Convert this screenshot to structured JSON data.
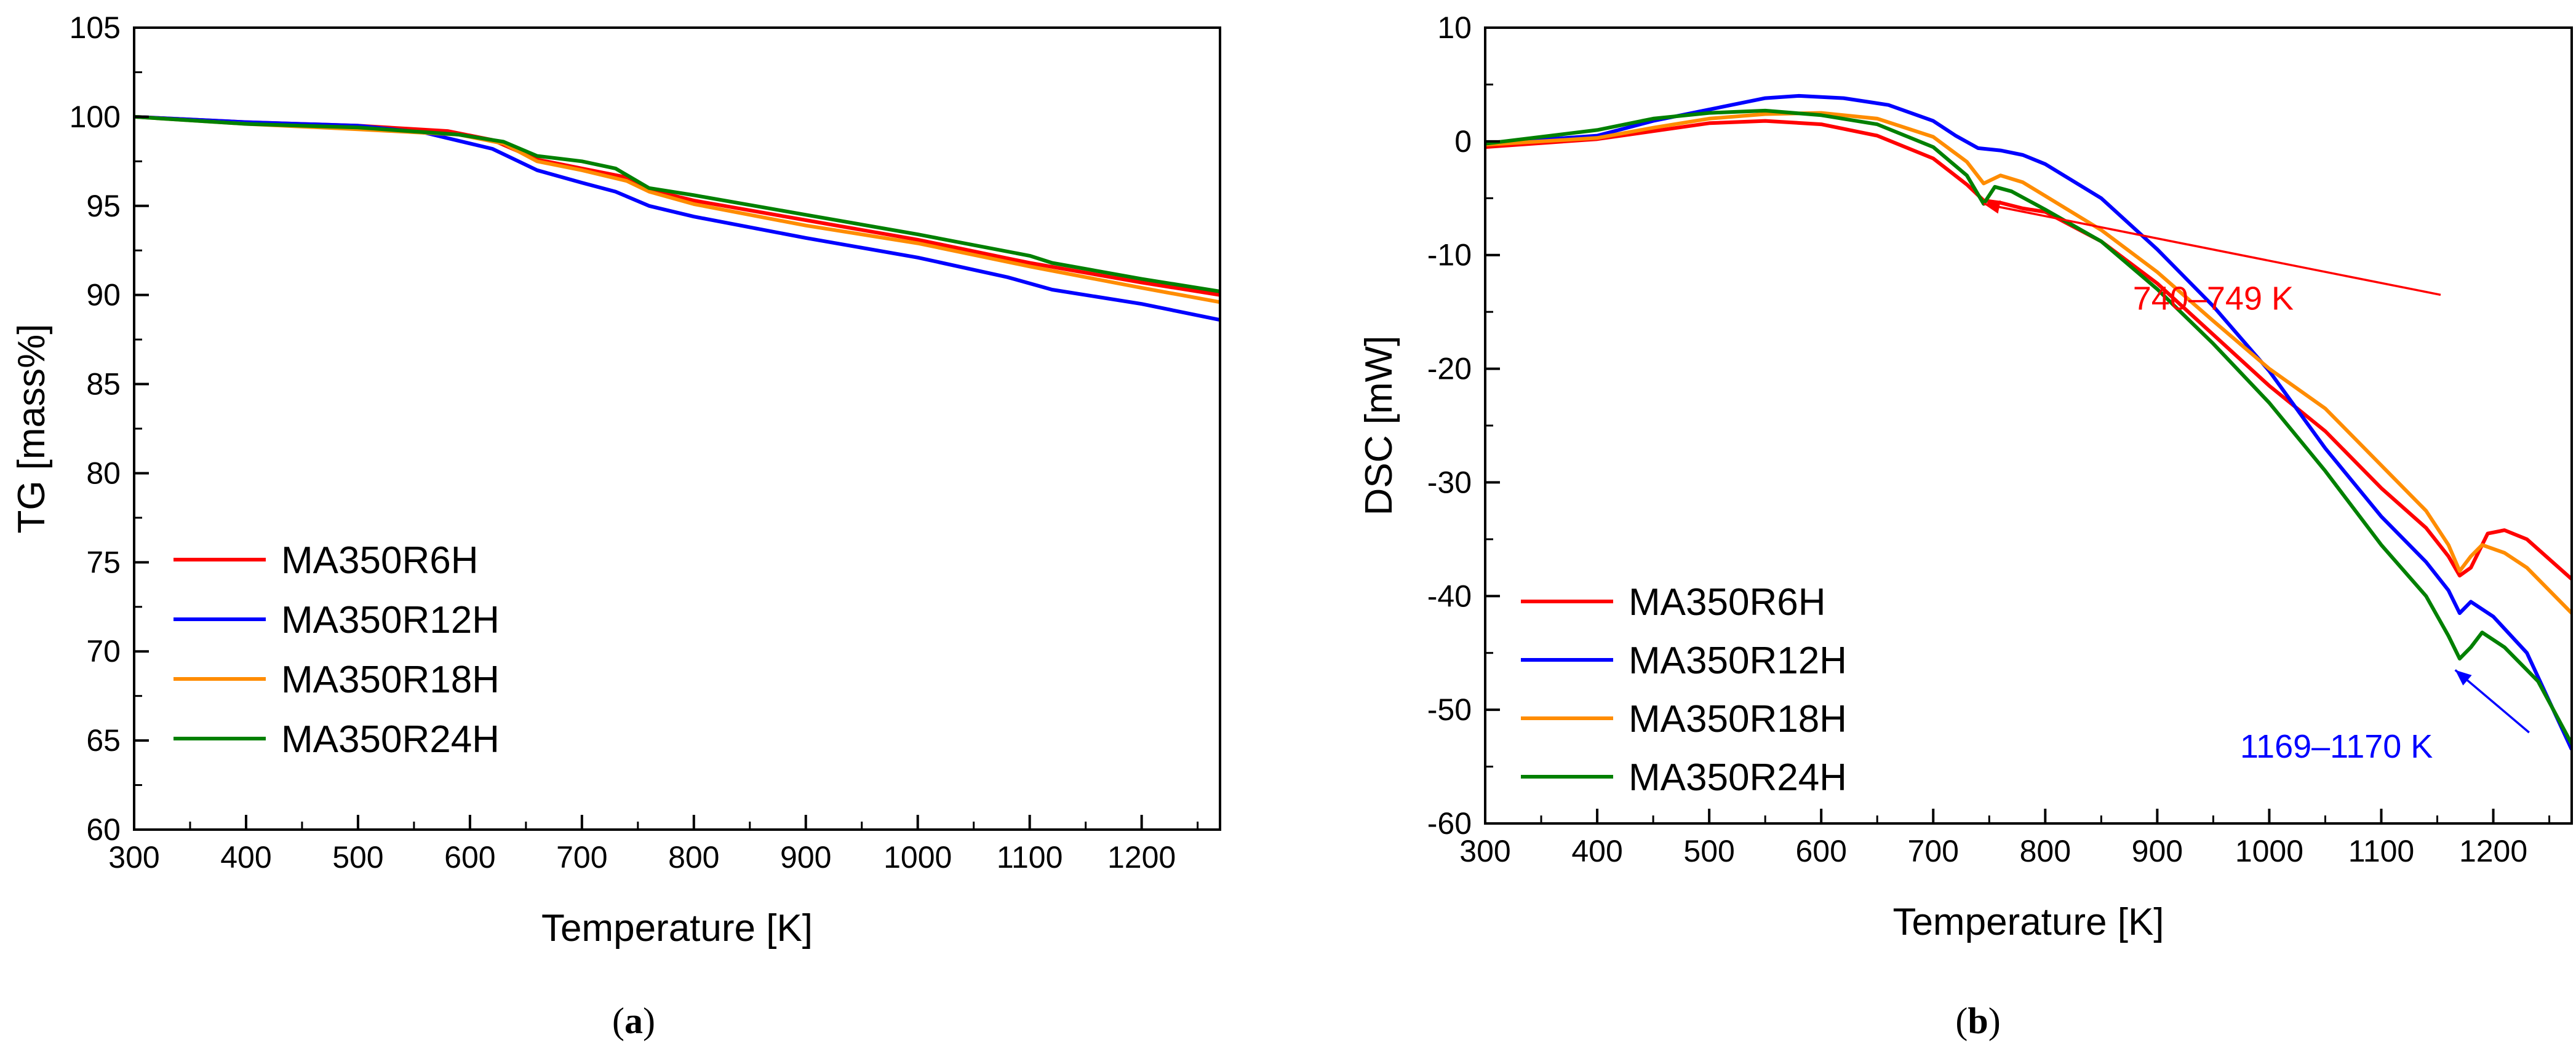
{
  "colors": {
    "MA350R6H": "#ff0000",
    "MA350R12H": "#0000ff",
    "MA350R18H": "#ff8c00",
    "MA350R24H": "#008000",
    "annotation_red": "#ff0000",
    "annotation_blue": "#0000ff"
  },
  "chart_data": [
    {
      "id": "a",
      "type": "line",
      "caption": {
        "open": "(",
        "letter": "a",
        "close": ")"
      },
      "title": "",
      "xlabel": "Temperature [K]",
      "ylabel": "TG [mass%]",
      "xlim": [
        300,
        1270
      ],
      "ylim": [
        60,
        105
      ],
      "xticks": [
        300,
        400,
        500,
        600,
        700,
        800,
        900,
        1000,
        1100,
        1200
      ],
      "yticks": [
        60,
        65,
        70,
        75,
        80,
        85,
        90,
        95,
        100,
        105
      ],
      "legend_position": "bottom-left",
      "series": [
        {
          "name": "MA350R6H",
          "color_key": "MA350R6H",
          "points": [
            [
              300,
              100
            ],
            [
              400,
              99.7
            ],
            [
              500,
              99.5
            ],
            [
              580,
              99.2
            ],
            [
              620,
              98.7
            ],
            [
              660,
              97.6
            ],
            [
              700,
              97.1
            ],
            [
              740,
              96.6
            ],
            [
              760,
              95.9
            ],
            [
              800,
              95.3
            ],
            [
              900,
              94.2
            ],
            [
              1000,
              93.1
            ],
            [
              1100,
              91.8
            ],
            [
              1200,
              90.7
            ],
            [
              1270,
              90.0
            ]
          ]
        },
        {
          "name": "MA350R12H",
          "color_key": "MA350R12H",
          "points": [
            [
              300,
              100
            ],
            [
              400,
              99.7
            ],
            [
              500,
              99.5
            ],
            [
              560,
              99.1
            ],
            [
              620,
              98.2
            ],
            [
              660,
              97.0
            ],
            [
              700,
              96.3
            ],
            [
              730,
              95.8
            ],
            [
              760,
              95.0
            ],
            [
              800,
              94.4
            ],
            [
              900,
              93.2
            ],
            [
              1000,
              92.1
            ],
            [
              1080,
              91.0
            ],
            [
              1120,
              90.3
            ],
            [
              1200,
              89.5
            ],
            [
              1270,
              88.6
            ]
          ]
        },
        {
          "name": "MA350R18H",
          "color_key": "MA350R18H",
          "points": [
            [
              300,
              100
            ],
            [
              400,
              99.6
            ],
            [
              500,
              99.3
            ],
            [
              590,
              99.0
            ],
            [
              630,
              98.5
            ],
            [
              660,
              97.5
            ],
            [
              700,
              97.0
            ],
            [
              740,
              96.4
            ],
            [
              760,
              95.8
            ],
            [
              800,
              95.1
            ],
            [
              900,
              93.9
            ],
            [
              1000,
              92.9
            ],
            [
              1100,
              91.6
            ],
            [
              1200,
              90.4
            ],
            [
              1270,
              89.6
            ]
          ]
        },
        {
          "name": "MA350R24H",
          "color_key": "MA350R24H",
          "points": [
            [
              300,
              100
            ],
            [
              400,
              99.6
            ],
            [
              500,
              99.4
            ],
            [
              590,
              99.0
            ],
            [
              630,
              98.6
            ],
            [
              660,
              97.8
            ],
            [
              700,
              97.5
            ],
            [
              730,
              97.1
            ],
            [
              760,
              96.0
            ],
            [
              800,
              95.6
            ],
            [
              900,
              94.5
            ],
            [
              1000,
              93.4
            ],
            [
              1100,
              92.2
            ],
            [
              1120,
              91.8
            ],
            [
              1200,
              90.9
            ],
            [
              1270,
              90.2
            ]
          ]
        }
      ]
    },
    {
      "id": "b",
      "type": "line",
      "caption": {
        "open": "(",
        "letter": "b",
        "close": ")"
      },
      "title": "",
      "xlabel": "Temperature [K]",
      "ylabel": "DSC [mW]",
      "xlim": [
        300,
        1270
      ],
      "ylim": [
        -60,
        10
      ],
      "xticks": [
        300,
        400,
        500,
        600,
        700,
        800,
        900,
        1000,
        1100,
        1200
      ],
      "yticks": [
        -60,
        -50,
        -40,
        -30,
        -20,
        -10,
        0,
        10
      ],
      "legend_position": "bottom-left",
      "annotations": [
        {
          "text": "740–749 K",
          "color_key": "annotation_red",
          "arrow_from": [
            1153,
            -13.5
          ],
          "arrow_to": [
            745,
            -5.5
          ],
          "text_at": [
            950,
            -14.8
          ]
        },
        {
          "text": "1169–1170 K",
          "color_key": "annotation_blue",
          "arrow_from": [
            1232,
            -52.0
          ],
          "arrow_to": [
            1166,
            -46.5
          ],
          "text_at": [
            1060,
            -54.2
          ]
        }
      ],
      "series": [
        {
          "name": "MA350R6H",
          "color_key": "MA350R6H",
          "points": [
            [
              300,
              -0.5
            ],
            [
              400,
              0.2
            ],
            [
              500,
              1.6
            ],
            [
              550,
              1.8
            ],
            [
              600,
              1.5
            ],
            [
              650,
              0.5
            ],
            [
              700,
              -1.5
            ],
            [
              730,
              -3.8
            ],
            [
              745,
              -5.2
            ],
            [
              760,
              -5.4
            ],
            [
              780,
              -5.9
            ],
            [
              800,
              -6.2
            ],
            [
              850,
              -8.8
            ],
            [
              900,
              -12.5
            ],
            [
              950,
              -17
            ],
            [
              1000,
              -21.5
            ],
            [
              1050,
              -25.5
            ],
            [
              1100,
              -30.5
            ],
            [
              1140,
              -34
            ],
            [
              1160,
              -36.5
            ],
            [
              1170,
              -38.2
            ],
            [
              1180,
              -37.5
            ],
            [
              1195,
              -34.5
            ],
            [
              1210,
              -34.2
            ],
            [
              1230,
              -35.0
            ],
            [
              1270,
              -38.5
            ]
          ]
        },
        {
          "name": "MA350R12H",
          "color_key": "MA350R12H",
          "points": [
            [
              300,
              -0.2
            ],
            [
              400,
              0.5
            ],
            [
              450,
              1.8
            ],
            [
              500,
              2.8
            ],
            [
              550,
              3.8
            ],
            [
              580,
              4.0
            ],
            [
              620,
              3.8
            ],
            [
              660,
              3.2
            ],
            [
              700,
              1.8
            ],
            [
              720,
              0.5
            ],
            [
              740,
              -0.6
            ],
            [
              760,
              -0.8
            ],
            [
              780,
              -1.2
            ],
            [
              800,
              -2.0
            ],
            [
              850,
              -5.0
            ],
            [
              900,
              -9.5
            ],
            [
              950,
              -14.5
            ],
            [
              1000,
              -20.2
            ],
            [
              1050,
              -27
            ],
            [
              1100,
              -33
            ],
            [
              1140,
              -37
            ],
            [
              1160,
              -39.5
            ],
            [
              1170,
              -41.5
            ],
            [
              1180,
              -40.5
            ],
            [
              1200,
              -41.8
            ],
            [
              1230,
              -45
            ],
            [
              1270,
              -53.5
            ]
          ]
        },
        {
          "name": "MA350R18H",
          "color_key": "MA350R18H",
          "points": [
            [
              300,
              -0.3
            ],
            [
              400,
              0.3
            ],
            [
              450,
              1.2
            ],
            [
              500,
              2.0
            ],
            [
              550,
              2.4
            ],
            [
              600,
              2.5
            ],
            [
              650,
              2.0
            ],
            [
              700,
              0.4
            ],
            [
              730,
              -1.8
            ],
            [
              745,
              -3.7
            ],
            [
              760,
              -3.0
            ],
            [
              780,
              -3.6
            ],
            [
              800,
              -4.8
            ],
            [
              850,
              -7.8
            ],
            [
              900,
              -11.5
            ],
            [
              950,
              -15.8
            ],
            [
              1000,
              -20
            ],
            [
              1050,
              -23.5
            ],
            [
              1100,
              -28.5
            ],
            [
              1140,
              -32.5
            ],
            [
              1160,
              -35.5
            ],
            [
              1170,
              -37.8
            ],
            [
              1180,
              -36.5
            ],
            [
              1190,
              -35.5
            ],
            [
              1210,
              -36.2
            ],
            [
              1230,
              -37.5
            ],
            [
              1270,
              -41.5
            ]
          ]
        },
        {
          "name": "MA350R24H",
          "color_key": "MA350R24H",
          "points": [
            [
              300,
              -0.2
            ],
            [
              400,
              1.0
            ],
            [
              450,
              2.0
            ],
            [
              500,
              2.5
            ],
            [
              550,
              2.7
            ],
            [
              600,
              2.3
            ],
            [
              650,
              1.5
            ],
            [
              700,
              -0.5
            ],
            [
              730,
              -3.0
            ],
            [
              745,
              -5.5
            ],
            [
              755,
              -4.0
            ],
            [
              770,
              -4.4
            ],
            [
              800,
              -6.0
            ],
            [
              850,
              -8.8
            ],
            [
              900,
              -13
            ],
            [
              950,
              -17.8
            ],
            [
              1000,
              -23
            ],
            [
              1050,
              -29
            ],
            [
              1100,
              -35.5
            ],
            [
              1140,
              -40
            ],
            [
              1160,
              -43.5
            ],
            [
              1170,
              -45.5
            ],
            [
              1180,
              -44.5
            ],
            [
              1190,
              -43.2
            ],
            [
              1210,
              -44.5
            ],
            [
              1240,
              -47.5
            ],
            [
              1270,
              -53
            ]
          ]
        }
      ]
    }
  ]
}
